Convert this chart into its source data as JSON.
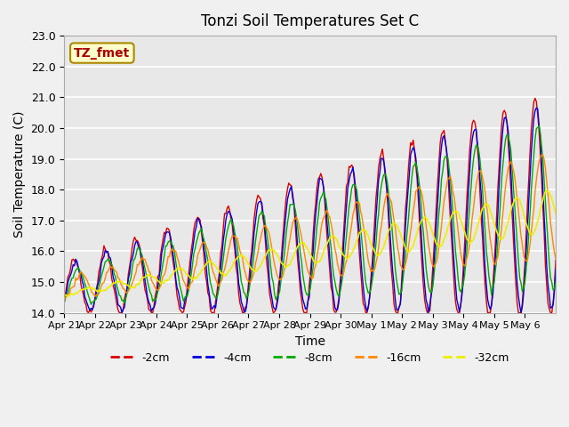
{
  "title": "Tonzi Soil Temperatures Set C",
  "xlabel": "Time",
  "ylabel": "Soil Temperature (C)",
  "annotation": "TZ_fmet",
  "ylim": [
    14.0,
    23.0
  ],
  "yticks": [
    14.0,
    15.0,
    16.0,
    17.0,
    18.0,
    19.0,
    20.0,
    21.0,
    22.0,
    23.0
  ],
  "xtick_labels": [
    "Apr 21",
    "Apr 22",
    "Apr 23",
    "Apr 24",
    "Apr 25",
    "Apr 26",
    "Apr 27",
    "Apr 28",
    "Apr 29",
    "Apr 30",
    "May 1",
    "May 2",
    "May 3",
    "May 4",
    "May 5",
    "May 6"
  ],
  "series": [
    {
      "label": "-2cm",
      "color": "#dd0000"
    },
    {
      "label": "-4cm",
      "color": "#0000dd"
    },
    {
      "label": "-8cm",
      "color": "#00aa00"
    },
    {
      "label": "-16cm",
      "color": "#ff8800"
    },
    {
      "label": "-32cm",
      "color": "#eeee00"
    }
  ],
  "fig_bg_color": "#f0f0f0",
  "plot_bg_color": "#e8e8e8",
  "grid_color": "#ffffff"
}
